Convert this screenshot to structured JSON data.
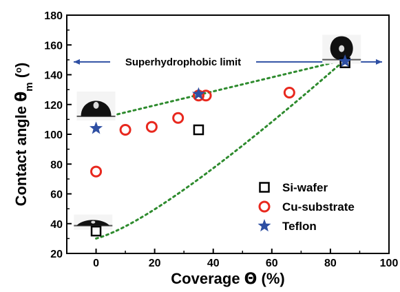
{
  "chart_data": {
    "type": "scatter",
    "xlabel_prefix": "Coverage ",
    "xlabel_symbol": "Θ",
    "xlabel_unit": " (%)",
    "ylabel_prefix": "Contact angle ",
    "ylabel_symbol": "θ",
    "ylabel_subscript": "m",
    "ylabel_unit_open": " (",
    "ylabel_degree": "o",
    "ylabel_unit_close": ")",
    "xlim": [
      -10,
      100
    ],
    "ylim": [
      20,
      180
    ],
    "xticks": [
      0,
      20,
      40,
      60,
      80,
      100
    ],
    "yticks": [
      20,
      40,
      60,
      80,
      100,
      120,
      140,
      160,
      180
    ],
    "grid": false,
    "legend_position": "bottom-right",
    "series": [
      {
        "name": "Si-wafer",
        "marker": "open-square",
        "color": "#000000",
        "points": [
          [
            0,
            35
          ],
          [
            35,
            103
          ],
          [
            85,
            148
          ]
        ]
      },
      {
        "name": "Cu-substrate",
        "marker": "open-circle",
        "color": "#e8281e",
        "points": [
          [
            0,
            75
          ],
          [
            10,
            103
          ],
          [
            19,
            105
          ],
          [
            28,
            111
          ],
          [
            35,
            126
          ],
          [
            37.5,
            126
          ],
          [
            66,
            128
          ]
        ]
      },
      {
        "name": "Teflon",
        "marker": "star",
        "color": "#2e4fa3",
        "points": [
          [
            0,
            104
          ],
          [
            35,
            127
          ],
          [
            85,
            149
          ]
        ]
      }
    ],
    "guide_lines": {
      "color": "#2e8b2e",
      "upper": [
        [
          0,
          110
        ],
        [
          85,
          150
        ]
      ],
      "lower": [
        [
          0,
          30
        ],
        [
          85,
          150
        ]
      ]
    },
    "reference_line": {
      "label": "Superhydrophobic limit",
      "y": 150,
      "color": "#2e4fa3"
    },
    "droplet_insets": [
      {
        "name": "droplet-high",
        "x": 85,
        "y": 158
      },
      {
        "name": "droplet-mid",
        "x": 0,
        "y": 119
      },
      {
        "name": "droplet-low",
        "x": -1,
        "y": 41
      }
    ]
  }
}
